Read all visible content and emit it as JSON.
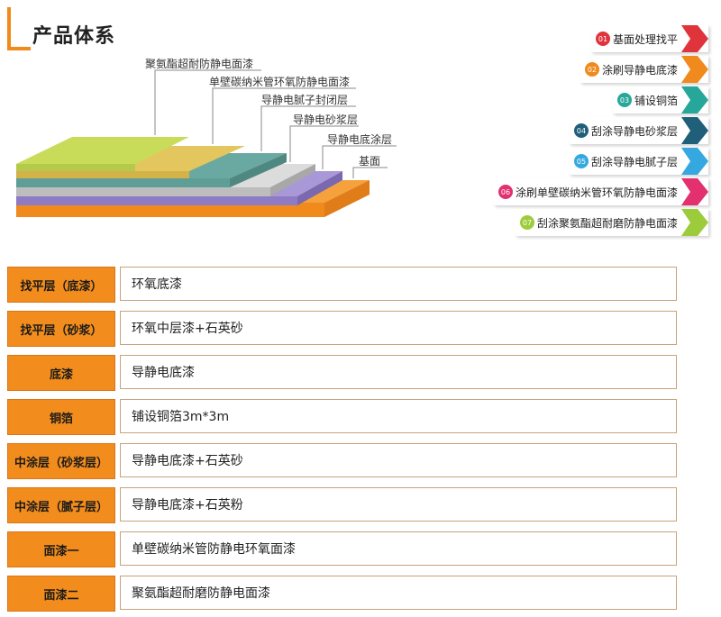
{
  "section_title": "产品体系",
  "layer_labels": [
    "聚氨酯超耐防静电面漆",
    "单壁碳纳米管环氧防静电面漆",
    "导静电腻子封闭层",
    "导静电砂浆层",
    "导静电底涂层",
    "基面"
  ],
  "steps": [
    {
      "num": "01",
      "label": "基面处理找平",
      "color": "#e0343c"
    },
    {
      "num": "02",
      "label": "涂刷导静电底漆",
      "color": "#f08a1c"
    },
    {
      "num": "03",
      "label": "铺设铜箔",
      "color": "#26a79a"
    },
    {
      "num": "04",
      "label": "刮涂导静电砂浆层",
      "color": "#1f5f7a"
    },
    {
      "num": "05",
      "label": "刮涂导静电腻子层",
      "color": "#35a8e0"
    },
    {
      "num": "06",
      "label": "涂刷单壁碳纳米管环氧防静电面漆",
      "color": "#e3306f"
    },
    {
      "num": "07",
      "label": "刮涂聚氨酯超耐磨防静电面漆",
      "color": "#9ccc3c"
    }
  ],
  "table": [
    {
      "key": "找平层（底漆）",
      "value": "环氧底漆"
    },
    {
      "key": "找平层（砂浆）",
      "value": "环氧中层漆+石英砂"
    },
    {
      "key": "底漆",
      "value": "导静电底漆"
    },
    {
      "key": "铜箔",
      "value": "铺设铜箔3m*3m"
    },
    {
      "key": "中涂层（砂浆层）",
      "value": "导静电底漆+石英砂"
    },
    {
      "key": "中涂层（腻子层）",
      "value": "导静电底漆+石英粉"
    },
    {
      "key": "面漆一",
      "value": "单壁碳纳米管防静电环氧面漆"
    },
    {
      "key": "面漆二",
      "value": "聚氨酯超耐磨防静电面漆"
    }
  ],
  "colors": {
    "accent": "#f28c1c",
    "layer_top": "#c8dc5a",
    "layer_yellow": "#e2c45a",
    "layer_teal": "#5f9e96",
    "layer_grey": "#c9c9c9",
    "layer_purple": "#8e7bc4",
    "layer_orange": "#f5a13c"
  }
}
